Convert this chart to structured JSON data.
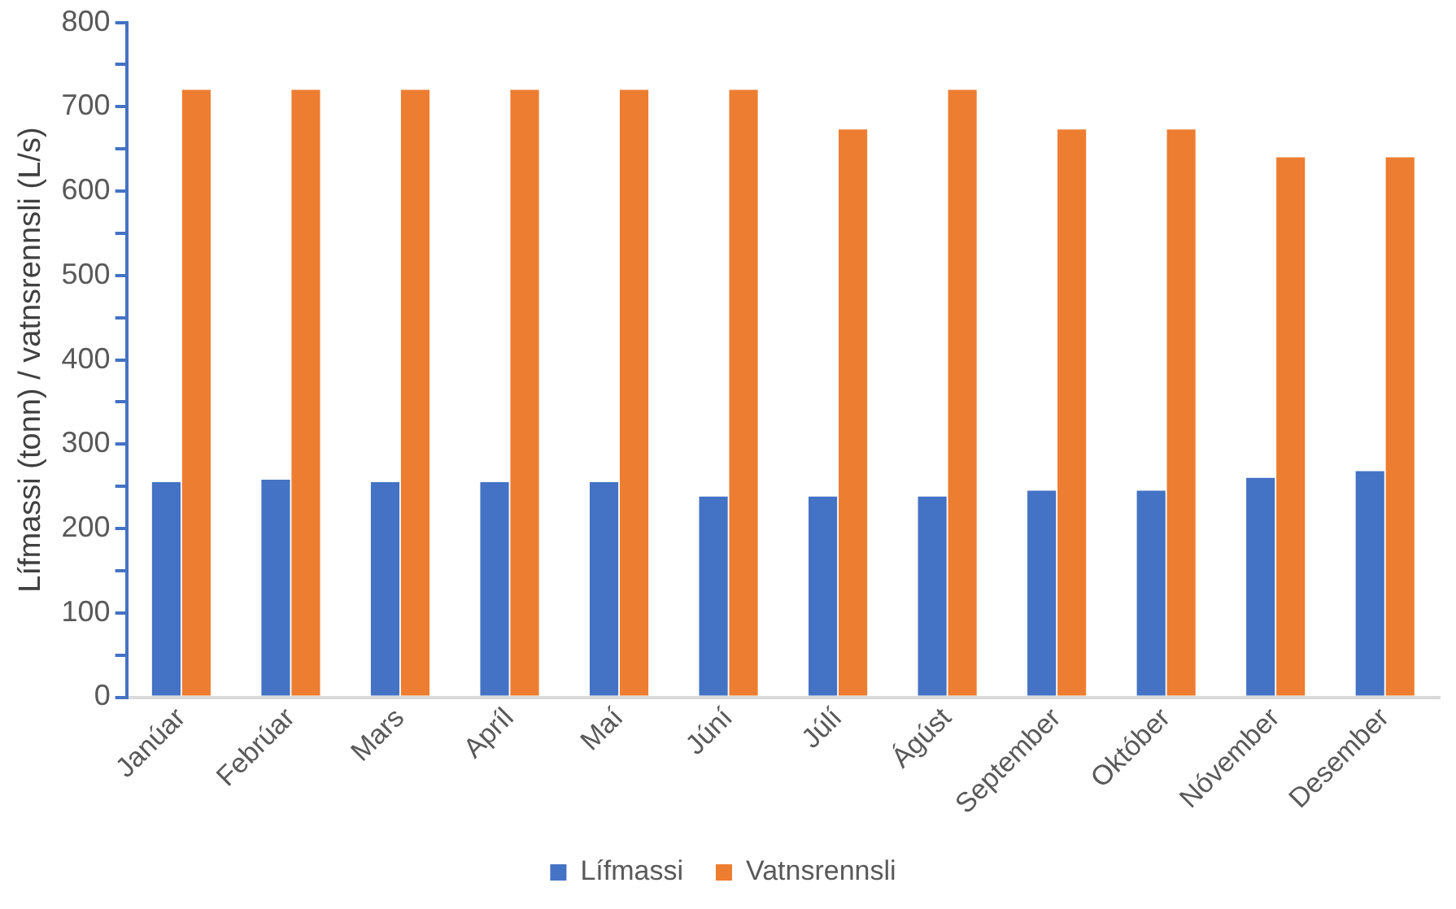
{
  "chart_data": {
    "type": "bar",
    "ylabel": "Lífmassi (tonn) / vatnsrennsli (L/s)",
    "categories": [
      "Janúar",
      "Febrúar",
      "Mars",
      "Apríl",
      "Maí",
      "Júní",
      "Júlí",
      "Ágúst",
      "September",
      "Október",
      "Nóvember",
      "Desember"
    ],
    "series": [
      {
        "name": "Lífmassi",
        "color": "#4472c4",
        "values": [
          255,
          258,
          255,
          255,
          255,
          238,
          238,
          238,
          245,
          245,
          260,
          268
        ]
      },
      {
        "name": "Vatnsrennsli",
        "color": "#ed7d31",
        "values": [
          720,
          720,
          720,
          720,
          720,
          720,
          673,
          720,
          673,
          673,
          640,
          640
        ]
      }
    ],
    "ylim": [
      0,
      800
    ],
    "yticks": [
      0,
      {
        "value": 50,
        "label": null
      },
      100,
      {
        "value": 150,
        "label": null
      },
      200,
      {
        "value": 250,
        "label": null
      },
      300,
      {
        "value": 350,
        "label": null
      },
      400,
      {
        "value": 450,
        "label": null
      },
      500,
      {
        "value": 550,
        "label": null
      },
      600,
      {
        "value": 650,
        "label": null
      },
      700,
      {
        "value": 750,
        "label": null
      },
      800
    ],
    "grid": false,
    "legend": "bottom"
  }
}
